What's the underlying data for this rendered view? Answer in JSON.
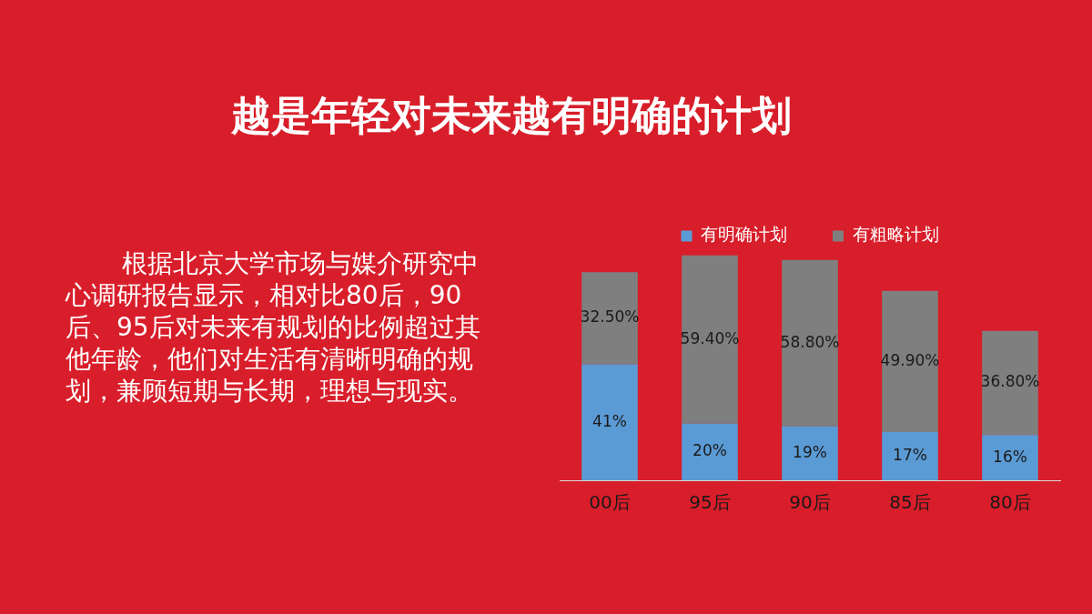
{
  "chart_data": {
    "type": "bar",
    "title": "越是年轻对未来越有明确的计划",
    "annotations": [
      "根据北京大学市场与媒介研究中心调研报告显示，相对比80后，90后、95后对未来有规划的比例超过其他年龄，他们对生活有清晰明确的规划，兼顾短期与长期，理想与现实。"
    ],
    "categories": [
      "00后",
      "95后",
      "90后",
      "85后",
      "80后"
    ],
    "stacked": true,
    "legend": "top",
    "grid": false,
    "series": [
      {
        "name": "有明确计划",
        "color": "#5b9bd5",
        "values": [
          41,
          20,
          19,
          17,
          16
        ],
        "value_labels": [
          "41%",
          "20%",
          "19%",
          "17%",
          "16%"
        ]
      },
      {
        "name": "有粗略计划",
        "color": "#7f7f7f",
        "values": [
          32.5,
          59.4,
          58.8,
          49.9,
          36.8
        ],
        "value_labels": [
          "32.50%",
          "59.40%",
          "58.80%",
          "49.90%",
          "36.80%"
        ]
      }
    ]
  }
}
